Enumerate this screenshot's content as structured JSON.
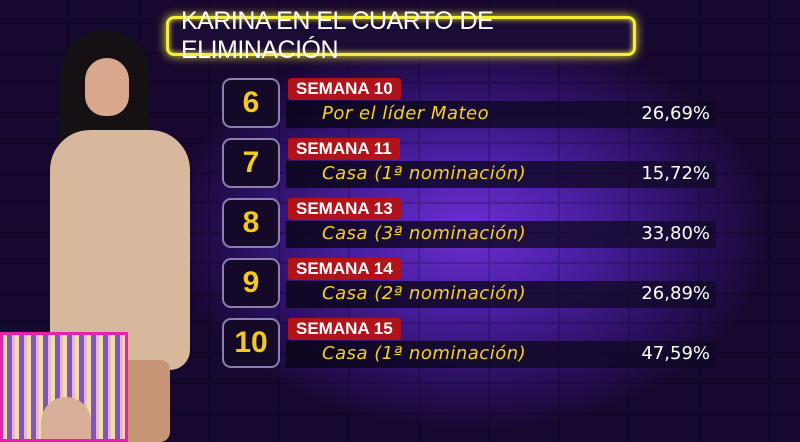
{
  "title": "KARINA EN EL CUARTO DE ELIMINACIÓN",
  "rows": [
    {
      "number": "6",
      "week": "SEMANA 10",
      "description": "Por el líder Mateo",
      "percent": "26,69%"
    },
    {
      "number": "7",
      "week": "SEMANA 11",
      "description": "Casa (1ª nominación)",
      "percent": "15,72%"
    },
    {
      "number": "8",
      "week": "SEMANA 13",
      "description": "Casa (3ª nominación)",
      "percent": "33,80%"
    },
    {
      "number": "9",
      "week": "SEMANA 14",
      "description": "Casa (2ª nominación)",
      "percent": "26,89%"
    },
    {
      "number": "10",
      "week": "SEMANA 15",
      "description": "Casa (1ª nominación)",
      "percent": "47,59%"
    }
  ],
  "colors": {
    "title_border": "#f2ee3a",
    "week_label": "#b0141a",
    "number": "#f5c91c",
    "description": "#f5d21e",
    "inset_border": "#e91fae"
  }
}
